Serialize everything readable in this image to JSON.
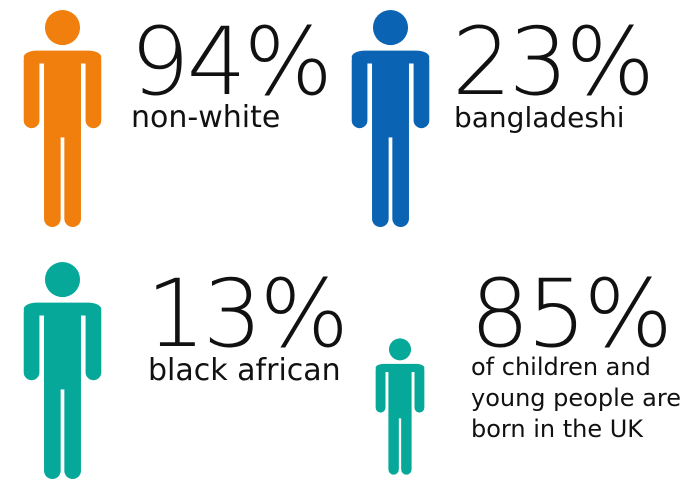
{
  "colors": {
    "orange": "#F07F0E",
    "blue": "#0A63B3",
    "teal": "#06A89A"
  },
  "stats": [
    {
      "value": "94%",
      "label": "non-white",
      "icon": "person-icon",
      "color": "#F07F0E"
    },
    {
      "value": "23%",
      "label": "bangladeshi",
      "icon": "person-icon",
      "color": "#0A63B3"
    },
    {
      "value": "13%",
      "label": "black african",
      "icon": "person-icon",
      "color": "#06A89A"
    },
    {
      "value": "85%",
      "label": "of children and young people are born in the UK",
      "icon": "child-icon",
      "color": "#06A89A"
    }
  ]
}
